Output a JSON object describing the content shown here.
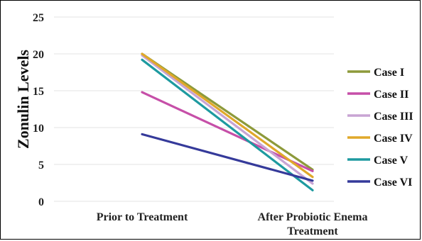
{
  "chart_data": {
    "type": "line",
    "title": "",
    "xlabel": "",
    "ylabel": "Zonulin  Levels",
    "ylim": [
      0,
      25
    ],
    "yticks": [
      "0",
      "5",
      "10",
      "15",
      "20",
      "25"
    ],
    "categories": [
      "Prior to Treatment",
      "After Probiotic Enema Treatment"
    ],
    "category_lines": [
      [
        "Prior to Treatment"
      ],
      [
        "After Probiotic Enema",
        "Treatment"
      ]
    ],
    "grid": true,
    "legend_position": "right",
    "series": [
      {
        "name": "Case I",
        "values": [
          20.0,
          4.3
        ],
        "color": "#8d9a3a"
      },
      {
        "name": "Case II",
        "values": [
          14.8,
          4.1
        ],
        "color": "#c64fa8"
      },
      {
        "name": "Case III",
        "values": [
          19.8,
          2.4
        ],
        "color": "#c8a4d4"
      },
      {
        "name": "Case IV",
        "values": [
          20.0,
          3.3
        ],
        "color": "#e0a82a"
      },
      {
        "name": "Case V",
        "values": [
          19.2,
          1.5
        ],
        "color": "#1e9aa0"
      },
      {
        "name": "Case VI",
        "values": [
          9.1,
          2.8
        ],
        "color": "#353a9a"
      }
    ]
  }
}
